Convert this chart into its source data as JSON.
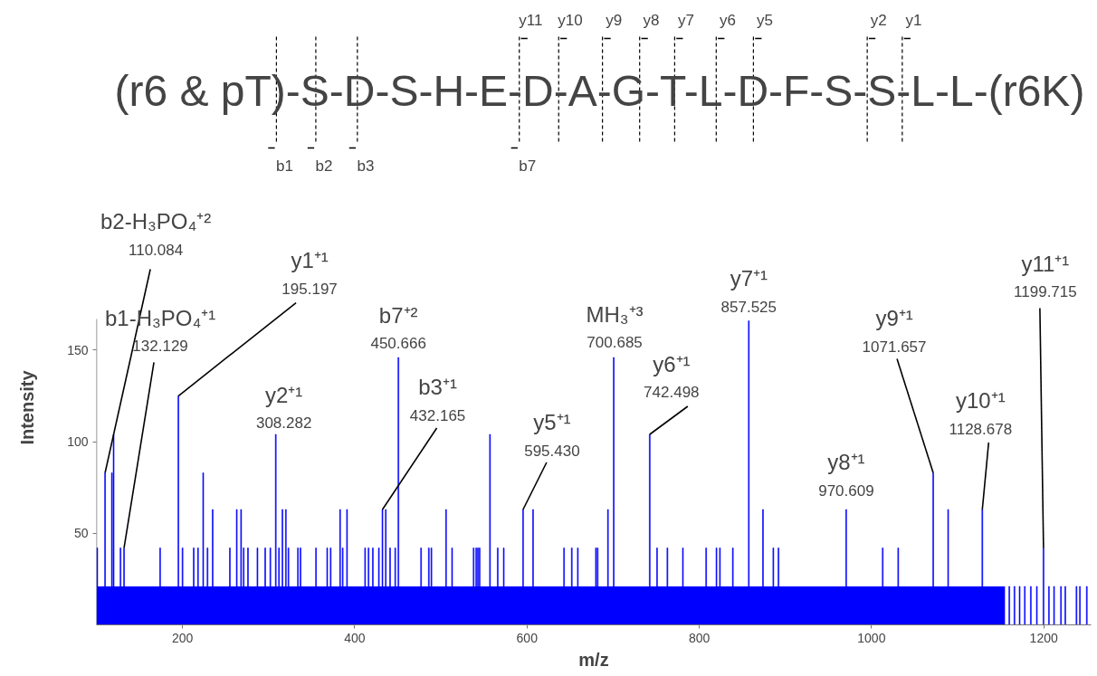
{
  "chart_data": {
    "type": "bar",
    "xlabel": "m/z",
    "ylabel": "Intensity",
    "xlim": [
      100,
      1255
    ],
    "ylim": [
      0,
      167
    ],
    "xticks": [
      200,
      400,
      600,
      800,
      1000,
      1200
    ],
    "yticks": [
      50,
      100,
      150
    ],
    "grid": false,
    "series": [
      {
        "type": "area",
        "color": "#0000ff",
        "x": [
          101,
          1155
        ],
        "values": [
          21,
          21
        ]
      },
      {
        "color": "#0000ff",
        "x": [
          101,
          110.084,
          118,
          120,
          128,
          132.129,
          174,
          195.197,
          200,
          213,
          218,
          224,
          229,
          235,
          255,
          263,
          268,
          271,
          276,
          287,
          296,
          302,
          308.282,
          312,
          316,
          320,
          323,
          334,
          337,
          355,
          368,
          372,
          383,
          386,
          391,
          412,
          416,
          421,
          428,
          432.165,
          436,
          441,
          447,
          450.666,
          477,
          486,
          489,
          506,
          513,
          538,
          541,
          543,
          545,
          557,
          566,
          573,
          595.43,
          607,
          643,
          652,
          659,
          680,
          682,
          694,
          700.685,
          742.498,
          751,
          763,
          781,
          808,
          820,
          824,
          839,
          857.525,
          874,
          886,
          892,
          970.609,
          1013,
          1031,
          1071.657,
          1089,
          1128.678,
          1160,
          1166,
          1172,
          1178,
          1185,
          1192,
          1199.715,
          1206,
          1212,
          1220,
          1225,
          1238,
          1242,
          1250
        ],
        "values": [
          42,
          83,
          83,
          104,
          42,
          42,
          42,
          125,
          42,
          42,
          42,
          83,
          42,
          63,
          42,
          63,
          63,
          42,
          42,
          42,
          42,
          42,
          104,
          42,
          63,
          63,
          42,
          42,
          42,
          42,
          42,
          42,
          63,
          42,
          63,
          42,
          42,
          42,
          42,
          63,
          63,
          42,
          42,
          146,
          42,
          42,
          42,
          63,
          42,
          42,
          42,
          42,
          42,
          104,
          42,
          42,
          63,
          63,
          42,
          42,
          42,
          42,
          42,
          63,
          146,
          104,
          42,
          42,
          42,
          42,
          42,
          42,
          42,
          166,
          63,
          42,
          42,
          63,
          42,
          42,
          83,
          63,
          63,
          21,
          21,
          21,
          21,
          21,
          21,
          42,
          21,
          21,
          21,
          21,
          21,
          21,
          21
        ]
      }
    ],
    "annotations": [
      "(r6 & pT)-S-D-S-H-E-D-A-G-T-L-D-F-S-S-L-L-(r6K)",
      "b1",
      "b2",
      "b3",
      "b7",
      "y11",
      "y10",
      "y9",
      "y8",
      "y7",
      "y6",
      "y5",
      "y2",
      "y1",
      {
        "text": "b2-H₃PO₄⁺²\n110.084",
        "x": 110.084,
        "y": 83
      },
      {
        "text": "b1-H₃PO₄⁺¹\n132.129",
        "x": 132.129,
        "y": 42
      },
      {
        "text": "y1⁺¹\n195.197",
        "x": 195.197,
        "y": 125
      },
      {
        "text": "y2⁺¹\n308.282",
        "x": 308.282,
        "y": 104
      },
      {
        "text": "b3⁺¹\n432.165",
        "x": 432.165,
        "y": 63
      },
      {
        "text": "b7⁺²\n450.666",
        "x": 450.666,
        "y": 146
      },
      {
        "text": "y5⁺¹\n595.430",
        "x": 595.43,
        "y": 63
      },
      {
        "text": "MH₃⁺³\n700.685",
        "x": 700.685,
        "y": 146
      },
      {
        "text": "y6⁺¹\n742.498",
        "x": 742.498,
        "y": 104
      },
      {
        "text": "y7⁺¹\n857.525",
        "x": 857.525,
        "y": 166
      },
      {
        "text": "y8⁺¹\n970.609",
        "x": 970.609,
        "y": 63
      },
      {
        "text": "y9⁺¹\n1071.657",
        "x": 1071.657,
        "y": 83
      },
      {
        "text": "y10⁺¹\n1128.678",
        "x": 1128.678,
        "y": 63
      },
      {
        "text": "y11⁺¹\n1199.715",
        "x": 1199.715,
        "y": 42
      }
    ]
  }
}
